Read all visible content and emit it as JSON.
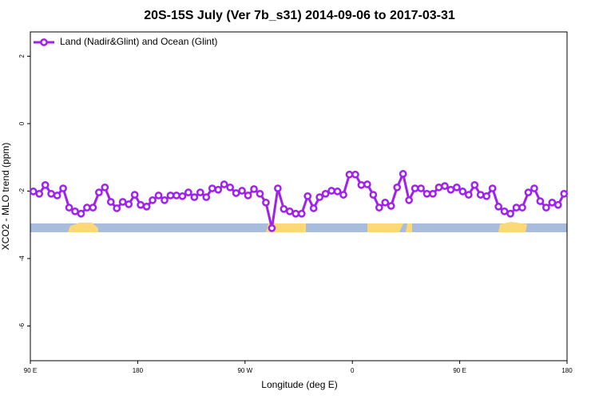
{
  "chart_data": {
    "type": "line",
    "title": "20S-15S July (Ver 7b_s31)   2014-09-06 to 2017-03-31",
    "xlabel": "Longitude (deg E)",
    "ylabel": "XCO2 - MLO trend (ppm)",
    "x": [
      92.5,
      97.5,
      102.5,
      107.5,
      112.5,
      117.5,
      122.5,
      127.5,
      132.5,
      137.5,
      142.5,
      147.5,
      152.5,
      157.5,
      162.5,
      167.5,
      172.5,
      177.5,
      182.5,
      187.5,
      192.5,
      197.5,
      202.5,
      207.5,
      212.5,
      217.5,
      222.5,
      227.5,
      232.5,
      237.5,
      242.5,
      247.5,
      252.5,
      257.5,
      262.5,
      267.5,
      272.5,
      277.5,
      282.5,
      287.5,
      292.5,
      297.5,
      302.5,
      307.5,
      312.5,
      317.5,
      322.5,
      327.5,
      332.5,
      337.5,
      342.5,
      347.5,
      352.5,
      357.5,
      362.5,
      367.5,
      372.5,
      377.5,
      382.5,
      387.5,
      392.5,
      397.5,
      402.5,
      407.5,
      412.5,
      417.5,
      422.5,
      427.5,
      432.5,
      437.5,
      442.5,
      447.5,
      452.5,
      457.5,
      462.5,
      467.5,
      472.5,
      477.5,
      482.5,
      487.5,
      492.5,
      497.5,
      502.5,
      507.5,
      512.5,
      517.5,
      522.5,
      527.5,
      532.5,
      537.5
    ],
    "series": [
      {
        "name": "Land (Nadir&Glint) and Ocean (Glint)",
        "color": "#a020f0",
        "values": [
          -2.01,
          -2.08,
          -1.82,
          -2.08,
          -2.13,
          -1.92,
          -2.49,
          -2.6,
          -2.67,
          -2.49,
          -2.49,
          -2.04,
          -1.89,
          -2.32,
          -2.51,
          -2.32,
          -2.39,
          -2.11,
          -2.41,
          -2.46,
          -2.27,
          -2.13,
          -2.27,
          -2.13,
          -2.13,
          -2.15,
          -2.04,
          -2.18,
          -2.04,
          -2.18,
          -1.92,
          -1.96,
          -1.8,
          -1.89,
          -2.06,
          -1.99,
          -2.13,
          -1.94,
          -2.08,
          -2.34,
          -3.1,
          -1.92,
          -2.53,
          -2.6,
          -2.67,
          -2.67,
          -2.15,
          -2.51,
          -2.18,
          -2.08,
          -1.99,
          -2.01,
          -2.11,
          -1.51,
          -1.51,
          -1.82,
          -1.8,
          -2.11,
          -2.49,
          -2.34,
          -2.44,
          -1.89,
          -1.49,
          -2.27,
          -1.92,
          -1.92,
          -2.08,
          -2.08,
          -1.89,
          -1.85,
          -1.96,
          -1.89,
          -2.01,
          -2.11,
          -1.82,
          -2.11,
          -2.15,
          -1.92,
          -2.46,
          -2.6,
          -2.67,
          -2.49,
          -2.49,
          -2.04,
          -1.92,
          -2.3,
          -2.49,
          -2.34,
          -2.41,
          -2.08
        ]
      }
    ],
    "xlim": [
      90,
      540
    ],
    "xticks": [
      {
        "value": 90,
        "label": "90 E"
      },
      180,
      {
        "value": 270,
        "label": "90 W"
      },
      {
        "value": 360,
        "label": "0"
      },
      {
        "value": 450,
        "label": "90 E"
      },
      {
        "value": 540,
        "label": "180"
      }
    ],
    "ylim": [
      -7.03,
      2.72
    ],
    "yticks": [
      -6,
      -4,
      -2,
      0,
      2
    ],
    "legend": "top-left"
  }
}
